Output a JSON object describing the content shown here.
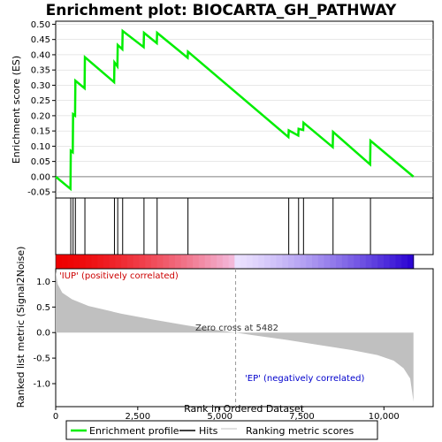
{
  "chart_data": {
    "type": "line",
    "title": "Enrichment plot: BIOCARTA_GH_PATHWAY",
    "xlabel": "Rank in Ordered Dataset",
    "ylabel_top": "Enrichment score (ES)",
    "ylabel_bottom": "Ranked list metric (Signal2Noise)",
    "xlim": [
      0,
      11500
    ],
    "x_ticks": [
      0,
      2500,
      5000,
      7500,
      10000
    ],
    "x_tick_labels": [
      "0",
      "2,500",
      "5,000",
      "7,500",
      "10,000"
    ],
    "es_ylim": [
      -0.07,
      0.51
    ],
    "es_ticks": [
      -0.05,
      0.0,
      0.05,
      0.1,
      0.15,
      0.2,
      0.25,
      0.3,
      0.35,
      0.4,
      0.45,
      0.5
    ],
    "es_tick_labels": [
      "-0.05",
      "0.00",
      "0.05",
      "0.10",
      "0.15",
      "0.20",
      "0.25",
      "0.30",
      "0.35",
      "0.40",
      "0.45",
      "0.50"
    ],
    "metric_ylim": [
      -1.45,
      1.25
    ],
    "metric_ticks": [
      -1.0,
      -0.5,
      0.0,
      0.5,
      1.0
    ],
    "metric_tick_labels": [
      "-1.0",
      "-0.5",
      "0.0",
      "0.5",
      "1.0"
    ],
    "n_genes": 10900,
    "enrichment_profile": {
      "name": "Enrichment profile",
      "color": "#00ee00",
      "x": [
        0,
        450,
        460,
        520,
        530,
        590,
        600,
        880,
        890,
        1780,
        1790,
        1880,
        1890,
        2030,
        2040,
        2680,
        2690,
        3080,
        3090,
        4020,
        4030,
        7090,
        7100,
        7390,
        7400,
        7540,
        7550,
        8440,
        8450,
        9580,
        9590,
        10900
      ],
      "y": [
        0.0,
        -0.04,
        0.085,
        0.08,
        0.205,
        0.2,
        0.315,
        0.29,
        0.392,
        0.31,
        0.375,
        0.362,
        0.432,
        0.418,
        0.478,
        0.425,
        0.472,
        0.438,
        0.472,
        0.39,
        0.41,
        0.13,
        0.152,
        0.135,
        0.157,
        0.153,
        0.177,
        0.097,
        0.147,
        0.04,
        0.118,
        0.0
      ]
    },
    "hits": {
      "name": "Hits",
      "color": "#000000",
      "x": [
        460,
        530,
        600,
        890,
        1790,
        1890,
        2040,
        2690,
        3090,
        4030,
        7100,
        7400,
        7550,
        8450,
        9590
      ]
    },
    "ranking_metric": {
      "name": "Ranking metric scores",
      "color": "#c0c0c0",
      "x": [
        0,
        60,
        200,
        500,
        1000,
        2000,
        3000,
        4000,
        5000,
        5482,
        6000,
        7000,
        8000,
        9000,
        9800,
        10300,
        10600,
        10800,
        10900
      ],
      "y": [
        1.2,
        0.95,
        0.78,
        0.65,
        0.52,
        0.37,
        0.25,
        0.14,
        0.04,
        0.0,
        -0.05,
        -0.14,
        -0.24,
        -0.34,
        -0.44,
        -0.55,
        -0.7,
        -0.9,
        -1.35
      ]
    },
    "zero_cross_rank": 5482,
    "annotations": {
      "zero_cross": "Zero cross at 5482",
      "positive": "'IUP' (positively correlated)",
      "negative": "'EP' (negatively correlated)"
    },
    "colors": {
      "positive": "#ff0000",
      "negative": "#0000ff",
      "positive_label": "#cc0000",
      "negative_label": "#0000cc",
      "grid": "#d0d0d0"
    },
    "legend": {
      "placement": "bottom",
      "entries": [
        "Enrichment profile",
        "Hits",
        "Ranking metric scores"
      ]
    }
  }
}
